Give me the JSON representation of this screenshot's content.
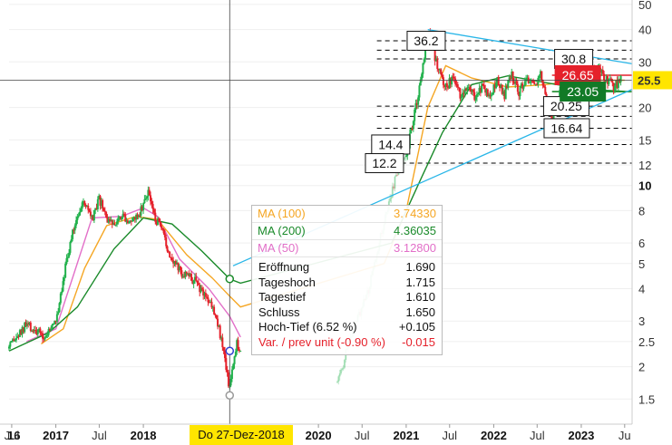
{
  "chart_data": {
    "type": "candlestick",
    "y_scale": "log",
    "ylim": [
      1.2,
      52
    ],
    "xlim": [
      "2016-06-20",
      "2023-08-01"
    ],
    "y_ticks": [
      {
        "value": 50,
        "label": "50",
        "bold": false
      },
      {
        "value": 40,
        "label": "40",
        "bold": false
      },
      {
        "value": 30,
        "label": "30",
        "bold": false
      },
      {
        "value": 20,
        "label": "20",
        "bold": false
      },
      {
        "value": 15,
        "label": "15",
        "bold": false
      },
      {
        "value": 12,
        "label": "12",
        "bold": false
      },
      {
        "value": 10,
        "label": "10",
        "bold": true
      },
      {
        "value": 8,
        "label": "8",
        "bold": false
      },
      {
        "value": 6,
        "label": "6",
        "bold": false
      },
      {
        "value": 5,
        "label": "5",
        "bold": false
      },
      {
        "value": 4,
        "label": "4",
        "bold": false
      },
      {
        "value": 3,
        "label": "3",
        "bold": false
      },
      {
        "value": 2.5,
        "label": "2.5",
        "bold": false
      },
      {
        "value": 2,
        "label": "2",
        "bold": false
      },
      {
        "value": 1.5,
        "label": "1.5",
        "bold": false
      }
    ],
    "x_ticks": [
      {
        "date": "2016-07-01",
        "label": "Jul",
        "bold": false
      },
      {
        "date": "2017-01-01",
        "label": "2017",
        "bold": true
      },
      {
        "date": "2017-07-01",
        "label": "Jul",
        "bold": false
      },
      {
        "date": "2018-01-01",
        "label": "2018",
        "bold": true
      },
      {
        "date": "2020-01-01",
        "label": "2020",
        "bold": true
      },
      {
        "date": "2020-07-01",
        "label": "Jul",
        "bold": false
      },
      {
        "date": "2021-01-01",
        "label": "2021",
        "bold": true
      },
      {
        "date": "2021-07-01",
        "label": "Jul",
        "bold": false
      },
      {
        "date": "2022-01-01",
        "label": "2022",
        "bold": true
      },
      {
        "date": "2022-07-01",
        "label": "Jul",
        "bold": false
      },
      {
        "date": "2023-01-01",
        "label": "2023",
        "bold": true
      },
      {
        "date": "2023-07-01",
        "label": "Ju",
        "bold": false
      }
    ],
    "x_label_fragment": "16",
    "crosshair": {
      "date": "2018-12-27",
      "date_label": "Do 27-Dez-2018",
      "price": 25.5
    },
    "price_path": [
      [
        "2016-06-20",
        2.35
      ],
      [
        "2016-09-01",
        2.9
      ],
      [
        "2016-11-15",
        2.6
      ],
      [
        "2017-01-01",
        3.0
      ],
      [
        "2017-02-15",
        5.2
      ],
      [
        "2017-04-01",
        7.8
      ],
      [
        "2017-05-01",
        8.6
      ],
      [
        "2017-06-01",
        7.3
      ],
      [
        "2017-07-01",
        8.8
      ],
      [
        "2017-08-15",
        7.0
      ],
      [
        "2017-10-01",
        7.8
      ],
      [
        "2017-11-15",
        7.2
      ],
      [
        "2018-01-01",
        8.4
      ],
      [
        "2018-01-20",
        9.7
      ],
      [
        "2018-02-15",
        7.6
      ],
      [
        "2018-03-15",
        6.8
      ],
      [
        "2018-04-15",
        5.6
      ],
      [
        "2018-06-01",
        4.7
      ],
      [
        "2018-08-01",
        4.3
      ],
      [
        "2018-09-15",
        3.8
      ],
      [
        "2018-11-01",
        3.2
      ],
      [
        "2018-12-15",
        1.9
      ],
      [
        "2018-12-27",
        1.65
      ],
      [
        "2019-01-10",
        2.1
      ],
      [
        "2019-01-25",
        2.5
      ],
      [
        "2019-02-10",
        2.3
      ],
      [
        "2021-01-01",
        13.0
      ],
      [
        "2021-02-15",
        21.0
      ],
      [
        "2021-03-10",
        28.0
      ],
      [
        "2021-04-01",
        40.0
      ],
      [
        "2021-04-20",
        33.0
      ],
      [
        "2021-05-15",
        28.5
      ],
      [
        "2021-06-15",
        24.0
      ],
      [
        "2021-07-15",
        26.0
      ],
      [
        "2021-08-15",
        22.0
      ],
      [
        "2021-09-15",
        25.0
      ],
      [
        "2021-10-15",
        22.0
      ],
      [
        "2021-11-15",
        24.5
      ],
      [
        "2021-12-15",
        21.5
      ],
      [
        "2022-01-15",
        26.0
      ],
      [
        "2022-02-15",
        22.5
      ],
      [
        "2022-03-15",
        27.0
      ],
      [
        "2022-04-15",
        23.0
      ],
      [
        "2022-05-15",
        26.0
      ],
      [
        "2022-06-15",
        24.0
      ],
      [
        "2022-07-15",
        27.5
      ],
      [
        "2022-08-15",
        20.5
      ],
      [
        "2022-09-01",
        17.5
      ],
      [
        "2022-09-20",
        20.0
      ],
      [
        "2022-10-15",
        27.0
      ],
      [
        "2022-11-15",
        28.5
      ],
      [
        "2022-12-15",
        25.0
      ],
      [
        "2023-01-15",
        28.0
      ],
      [
        "2023-02-15",
        27.5
      ],
      [
        "2023-03-15",
        28.0
      ],
      [
        "2023-04-15",
        26.0
      ],
      [
        "2023-05-15",
        24.0
      ],
      [
        "2023-06-15",
        25.5
      ]
    ],
    "price_path_2020": [
      [
        "2020-03-20",
        1.75
      ],
      [
        "2020-04-10",
        2.0
      ],
      [
        "2020-05-01",
        2.4
      ],
      [
        "2020-06-01",
        2.9
      ],
      [
        "2020-07-01",
        3.4
      ],
      [
        "2020-08-01",
        4.1
      ],
      [
        "2020-09-01",
        5.6
      ],
      [
        "2020-10-15",
        8.2
      ],
      [
        "2020-11-15",
        10.5
      ],
      [
        "2020-12-15",
        12.4
      ],
      [
        "2021-01-01",
        13.0
      ]
    ],
    "ma_paths": [
      {
        "name": "MA (50)",
        "color": "#e26fc8",
        "points": [
          [
            "2016-09-01",
            2.5
          ],
          [
            "2017-01-01",
            2.8
          ],
          [
            "2017-03-15",
            4.5
          ],
          [
            "2017-06-01",
            7.5
          ],
          [
            "2017-10-01",
            7.6
          ],
          [
            "2018-01-01",
            8.2
          ],
          [
            "2018-03-01",
            7.6
          ],
          [
            "2018-06-01",
            5.2
          ],
          [
            "2018-10-01",
            4.0
          ],
          [
            "2018-12-27",
            3.13
          ],
          [
            "2019-02-10",
            2.6
          ]
        ]
      },
      {
        "name": "MA (100)",
        "color": "#f5a623",
        "points": [
          [
            "2016-11-01",
            2.45
          ],
          [
            "2017-02-01",
            2.8
          ],
          [
            "2017-05-01",
            4.8
          ],
          [
            "2017-08-01",
            7.0
          ],
          [
            "2017-12-01",
            7.6
          ],
          [
            "2018-03-01",
            7.4
          ],
          [
            "2018-07-01",
            5.4
          ],
          [
            "2018-10-15",
            4.4
          ],
          [
            "2018-12-27",
            3.74
          ],
          [
            "2019-02-10",
            3.4
          ],
          [
            "2020-10-01",
            5.0
          ],
          [
            "2021-01-01",
            8.0
          ],
          [
            "2021-04-01",
            20.0
          ],
          [
            "2021-06-15",
            29.0
          ],
          [
            "2021-10-01",
            26.0
          ],
          [
            "2022-03-01",
            24.0
          ],
          [
            "2022-08-01",
            24.5
          ],
          [
            "2023-01-01",
            25.5
          ],
          [
            "2023-07-01",
            25.5
          ]
        ]
      },
      {
        "name": "MA (200)",
        "color": "#1a8a2a",
        "points": [
          [
            "2016-06-20",
            2.3
          ],
          [
            "2016-12-01",
            2.7
          ],
          [
            "2017-04-01",
            3.4
          ],
          [
            "2017-09-01",
            5.7
          ],
          [
            "2018-01-01",
            7.5
          ],
          [
            "2018-05-01",
            7.1
          ],
          [
            "2018-09-01",
            5.6
          ],
          [
            "2018-12-27",
            4.36
          ],
          [
            "2019-02-10",
            4.2
          ],
          [
            "2020-11-01",
            6.0
          ],
          [
            "2021-03-01",
            10.5
          ],
          [
            "2021-06-01",
            16.0
          ],
          [
            "2021-10-01",
            24.5
          ],
          [
            "2022-03-01",
            26.5
          ],
          [
            "2022-08-01",
            25.0
          ],
          [
            "2023-01-01",
            23.6
          ],
          [
            "2023-07-01",
            23.1
          ]
        ]
      }
    ],
    "horizontal_levels": [
      {
        "value": 36.2,
        "color": "#000000",
        "dashed": true
      },
      {
        "value": 33.3,
        "color": "#000000",
        "dashed": true
      },
      {
        "value": 30.8,
        "color": "#000000",
        "dashed": true
      },
      {
        "value": 20.25,
        "color": "#000000",
        "dashed": true
      },
      {
        "value": 18.5,
        "color": "#000000",
        "dashed": true
      },
      {
        "value": 16.64,
        "color": "#000000",
        "dashed": true
      },
      {
        "value": 14.4,
        "color": "#000000",
        "dashed": true
      },
      {
        "value": 12.2,
        "color": "#000000",
        "dashed": true
      },
      {
        "value": 26.65,
        "color": "#e5212b",
        "dashed": false
      },
      {
        "value": 23.05,
        "color": "#1a8a2a",
        "dashed": false
      }
    ],
    "trendlines": [
      {
        "color": "#29b6e8",
        "from": [
          "2021-04-01",
          40.0
        ],
        "to": [
          "2023-08-01",
          29.5
        ]
      },
      {
        "color": "#29b6e8",
        "from": [
          "2019-01-10",
          4.9
        ],
        "to": [
          "2023-08-01",
          23.5
        ]
      }
    ],
    "level_labels": [
      {
        "text": "36.2",
        "value": 36.2,
        "date": "2021-01-05",
        "style": "box"
      },
      {
        "text": "30.8",
        "value": 30.8,
        "date": "2022-09-12",
        "style": "box"
      },
      {
        "text": "20.25",
        "value": 20.25,
        "date": "2022-07-28",
        "style": "box"
      },
      {
        "text": "16.64",
        "value": 16.64,
        "date": "2022-07-30",
        "style": "box"
      },
      {
        "text": "14.4",
        "value": 14.4,
        "date": "2020-08-10",
        "style": "box"
      },
      {
        "text": "12.2",
        "value": 12.2,
        "date": "2020-07-15",
        "style": "box"
      },
      {
        "text": "26.65",
        "value": 26.65,
        "date": "2022-09-14",
        "style": "red"
      },
      {
        "text": "23.05",
        "value": 23.05,
        "date": "2022-10-05",
        "style": "green"
      }
    ],
    "axis_price_labels": [
      {
        "text": "25.5",
        "value": 25.5,
        "color": "#ffe500"
      }
    ],
    "tooltip": {
      "ma": [
        {
          "label": "MA (100)",
          "value": "3.74330",
          "color": "#f5a623"
        },
        {
          "label": "MA (200)",
          "value": "4.36035",
          "color": "#1a8a2a"
        },
        {
          "label": "MA (50)",
          "value": "3.12800",
          "color": "#e26fc8"
        }
      ],
      "rows": [
        {
          "label": "Eröffnung",
          "value": "1.690",
          "negative": false
        },
        {
          "label": "Tageshoch",
          "value": "1.715",
          "negative": false
        },
        {
          "label": "Tagestief",
          "value": "1.610",
          "negative": false
        },
        {
          "label": "Schluss",
          "value": "1.650",
          "negative": false
        },
        {
          "label": "Hoch-Tief (6.52 %)",
          "value": "+0.105",
          "negative": false
        },
        {
          "label": "Var. / prev unit (-0.90 %)",
          "value": "-0.015",
          "negative": true
        }
      ]
    },
    "crosshair_markers": [
      {
        "value": 4.36035,
        "color": "#1a8a2a"
      },
      {
        "value": 2.3,
        "color": "#3040d0"
      },
      {
        "value": 1.55,
        "color": "#999999"
      }
    ]
  }
}
